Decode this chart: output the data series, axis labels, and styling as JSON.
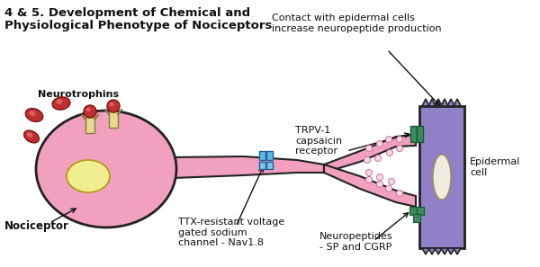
{
  "title_line1": "4 & 5. Development of Chemical and",
  "title_line2": "Physiological Phenotype of Nociceptors",
  "label_neurotrophins": "Neurotrophins",
  "label_nociceptor": "Nociceptor",
  "label_ttx": "TTX-resistant voltage\ngated sodium\nchannel - Nav1.8",
  "label_contact": "Contact with epidermal cells\nincrease neuropeptide production",
  "label_trpv": "TRPV-1\ncapsaicin\nreceptor",
  "label_epidermal": "Epidermal\ncell",
  "label_neuropeptides": "Neuropeptides\n- SP and CGRP",
  "bg_color": "#ffffff",
  "cell_body_color": "#f2a0c0",
  "cell_body_outline": "#222222",
  "nucleus_color": "#f0ee90",
  "axon_color": "#f2a0c0",
  "epidermal_color": "#9080c8",
  "epidermal_outline": "#222222",
  "receptor_trpv_color": "#3a8a5a",
  "channel_color": "#60b8d8",
  "neurotrophin_color": "#c03030",
  "neurotrophin_outline": "#801010",
  "terminal_branch_color": "#f2a0c0",
  "neuropeptide_color": "#3a8a5a",
  "dot_color": "#f0c0d0",
  "dot_outline": "#d07090",
  "arrow_color": "#111111",
  "text_color": "#111111",
  "title_fontsize": 9.5,
  "label_fontsize": 8.0
}
